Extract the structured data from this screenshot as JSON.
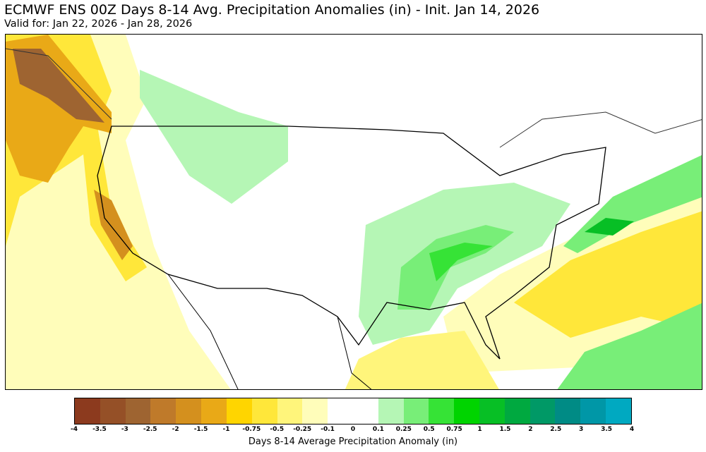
{
  "title": "ECMWF ENS 00Z Days 8-14 Avg. Precipitation Anomalies (in) - Init. Jan 14, 2026",
  "subtitle": "Valid for: Jan 22, 2026 - Jan 28, 2026",
  "colorbar": {
    "label": "Days 8-14 Average Precipitation Anomaly (in)",
    "ticks": [
      "-4",
      "-3.5",
      "-3",
      "-2.5",
      "-2",
      "-1.5",
      "-1",
      "-0.75",
      "-0.5",
      "-0.25",
      "-0.1",
      "0",
      "0.1",
      "0.25",
      "0.5",
      "0.75",
      "1",
      "1.5",
      "2",
      "2.5",
      "3",
      "3.5",
      "4"
    ],
    "colors": [
      "#8c3a1e",
      "#955027",
      "#9e6431",
      "#bf7a2a",
      "#d4901e",
      "#e9a917",
      "#ffd500",
      "#ffe73a",
      "#fff57b",
      "#fffdba",
      "#ffffff",
      "#ffffff",
      "#b5f6b5",
      "#78ee78",
      "#36e336",
      "#00d400",
      "#07bf25",
      "#00a940",
      "#009966",
      "#008b85",
      "#0097a7",
      "#00a9c1"
    ]
  },
  "map": {
    "region": "Contiguous United States and surroundings",
    "features": [
      {
        "area": "Pacific Northwest coast / British Columbia",
        "anomaly": "dry, -1 to -3.5"
      },
      {
        "area": "California and West Coast",
        "anomaly": "dry, -0.5 to -2"
      },
      {
        "area": "Tennessee Valley / Lower Mississippi Valley",
        "anomaly": "wet, 0.25 to 1.5"
      },
      {
        "area": "Western Atlantic off Mid-Atlantic",
        "anomaly": "wet, 0.5 to 1.5"
      },
      {
        "area": "Southeast US coast and Atlantic",
        "anomaly": "dry, -0.25 to -1"
      },
      {
        "area": "Caribbean",
        "anomaly": "wet, 0.25 to 0.75"
      }
    ]
  }
}
